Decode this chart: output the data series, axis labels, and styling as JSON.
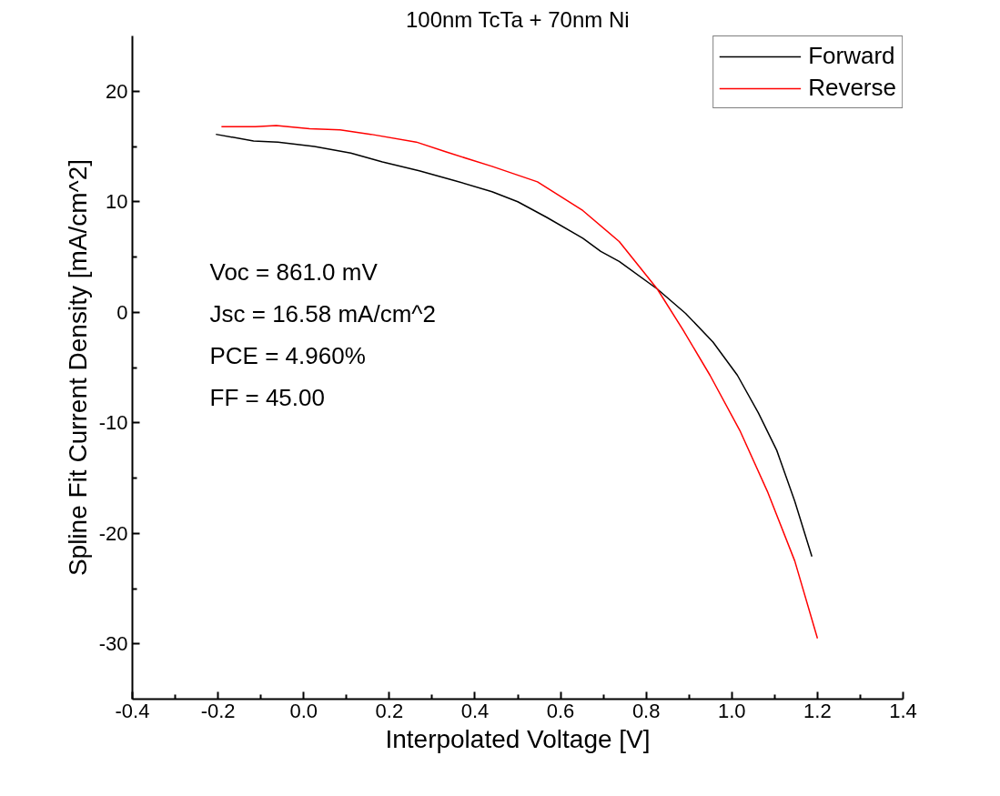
{
  "chart_data": {
    "type": "line",
    "title": "100nm TcTa + 70nm Ni",
    "xlabel": "Interpolated Voltage [V]",
    "ylabel": "Spline Fit Current Density [mA/cm^2]",
    "annotations": [
      "Voc = 861.0 mV",
      "Jsc = 16.58 mA/cm^2",
      "PCE = 4.960%",
      "FF = 45.00"
    ],
    "xlim": [
      -0.4,
      1.4
    ],
    "xticks": [
      -0.4,
      -0.2,
      {
        "value": 0,
        "label": "0.0"
      },
      0.2,
      0.4,
      0.6,
      0.8,
      {
        "value": 1,
        "label": "1.0"
      },
      1.2,
      1.4
    ],
    "ylim": [
      -35,
      25
    ],
    "yticks": [
      -30,
      -20,
      -10,
      0,
      10,
      20
    ],
    "grid": false,
    "legend": "top right",
    "marker": "none",
    "line_style": "solid",
    "series": [
      {
        "name": "Forward",
        "color": "#000000",
        "x": [
          -0.205,
          -0.117,
          -0.06,
          0.025,
          0.11,
          0.184,
          0.27,
          0.354,
          0.44,
          0.5,
          0.567,
          0.652,
          0.694,
          0.737,
          0.826,
          0.892,
          0.956,
          1.013,
          1.062,
          1.105,
          1.147,
          1.187
        ],
        "values": [
          16.1,
          15.5,
          15.4,
          15.0,
          14.4,
          13.6,
          12.8,
          11.9,
          10.9,
          10.0,
          8.6,
          6.7,
          5.5,
          4.6,
          2.1,
          -0.1,
          -2.7,
          -5.7,
          -9.1,
          -12.5,
          -17.1,
          -22.1
        ]
      },
      {
        "name": "Reverse",
        "color": "#ff0000",
        "x": [
          -0.192,
          -0.113,
          -0.064,
          0.014,
          0.085,
          0.157,
          0.263,
          0.333,
          0.44,
          0.546,
          0.652,
          0.737,
          0.826,
          0.886,
          0.949,
          1.02,
          1.083,
          1.147,
          1.2
        ],
        "values": [
          16.8,
          16.8,
          16.9,
          16.6,
          16.5,
          16.1,
          15.4,
          14.5,
          13.2,
          11.8,
          9.2,
          6.4,
          2.1,
          -1.6,
          -5.7,
          -10.8,
          -16.2,
          -22.5,
          -29.5
        ]
      }
    ]
  }
}
